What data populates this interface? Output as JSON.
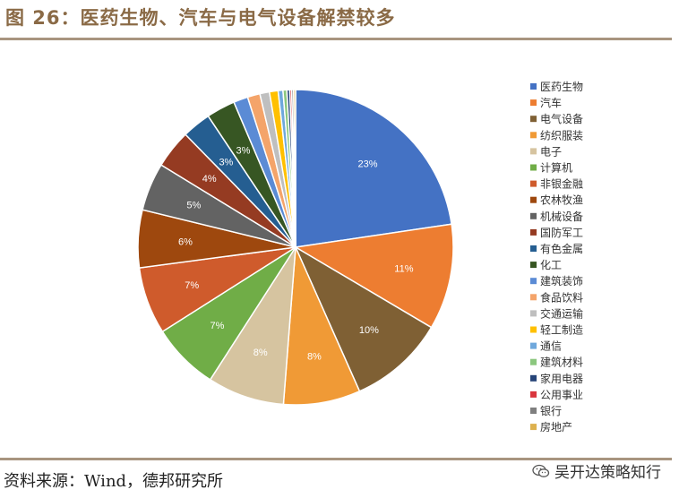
{
  "header": {
    "title": "图 26：医药生物、汽车与电气设备解禁较多"
  },
  "footer": {
    "source": "资料来源：Wind，德邦研究所",
    "wechat": "吴开达策略知行"
  },
  "chart_data": {
    "type": "pie",
    "title": "",
    "legend_position": "right",
    "categories": [
      "医药生物",
      "汽车",
      "电气设备",
      "纺织服装",
      "电子",
      "计算机",
      "非银金融",
      "农林牧渔",
      "机械设备",
      "国防军工",
      "有色金属",
      "化工",
      "建筑装饰",
      "食品饮料",
      "交通运输",
      "轻工制造",
      "通信",
      "建筑材料",
      "家用电器",
      "公用事业",
      "银行",
      "房地产"
    ],
    "values": [
      23,
      11,
      10,
      8,
      8,
      7,
      7,
      6,
      5,
      4,
      3,
      3,
      1.5,
      1.3,
      1.0,
      0.9,
      0.5,
      0.4,
      0.3,
      0.2,
      0.2,
      0.2
    ],
    "data_labels": [
      "23%",
      "11%",
      "10%",
      "8%",
      "8%",
      "7%",
      "7%",
      "6%",
      "5%",
      "4%",
      "3%",
      "3%",
      "",
      "",
      "",
      "",
      "",
      "",
      "",
      "",
      "",
      ""
    ],
    "colors": [
      "#4472c4",
      "#ed7d31",
      "#7f6034",
      "#f09a36",
      "#d6c4a0",
      "#70ad47",
      "#cf5b2c",
      "#9e480e",
      "#636363",
      "#953b22",
      "#255e91",
      "#375623",
      "#5b8bd5",
      "#f4a46a",
      "#bfbfbf",
      "#ffc000",
      "#6fa8dc",
      "#8bc77e",
      "#264478",
      "#d9363e",
      "#7f7f7f",
      "#ddb14f"
    ]
  }
}
